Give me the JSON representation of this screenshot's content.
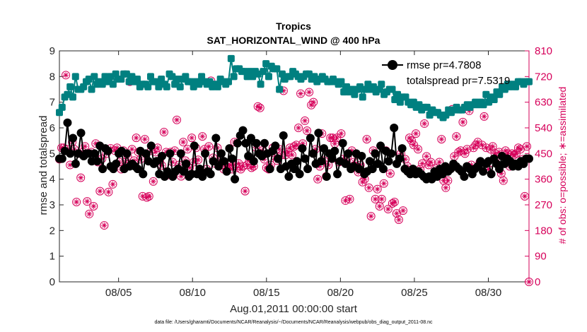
{
  "chart_data": {
    "type": "line",
    "title": "Tropics",
    "subtitle": "SAT_HORIZONTAL_WIND @ 400 hPa",
    "xlabel": "Aug.01,2011 00:00:00 start",
    "ylabel_left": "rmse and totalspread",
    "ylabel_right": "# of obs: o=possible; ∗=assimilated",
    "footer": "data file: /Users/gharamti/Documents/NCAR/Reanalysis/~/Documents/NCAR/Reanalysis/webpub/obs_diag_output_2011-08.nc",
    "x_unit": "days since Aug.01,2011 00:00",
    "xlim": [
      0.0,
      31.75
    ],
    "ylim_left": [
      0,
      9
    ],
    "ylim_right": [
      0,
      810
    ],
    "x_ticks": [
      {
        "day": 4,
        "label": "08/05"
      },
      {
        "day": 9,
        "label": "08/10"
      },
      {
        "day": 14,
        "label": "08/15"
      },
      {
        "day": 19,
        "label": "08/20"
      },
      {
        "day": 24,
        "label": "08/25"
      },
      {
        "day": 29,
        "label": "08/30"
      }
    ],
    "y_ticks_left": [
      0,
      1,
      2,
      3,
      4,
      5,
      6,
      7,
      8,
      9
    ],
    "y_ticks_right": [
      0,
      90,
      180,
      270,
      360,
      450,
      540,
      630,
      720,
      810
    ],
    "colors": {
      "rmse": "#000000",
      "totalspread": "#008080",
      "obs": "#d6005a",
      "axis_right": "#d6005a",
      "axes": "#262626"
    },
    "legend": {
      "placement": "top-right",
      "entries": [
        {
          "label": "rmse pr=4.7808",
          "series": "rmse"
        },
        {
          "label": "totalspread pr=7.5319",
          "series": "totalspread"
        }
      ]
    },
    "series": [
      {
        "name": "rmse",
        "axis": "left",
        "marker": "filled-circle",
        "values": [
          4.8,
          4.8,
          5.1,
          6.2,
          5.0,
          5.6,
          4.6,
          5.0,
          5.8,
          4.9,
          5.0,
          5.0,
          4.7,
          5.0,
          4.7,
          5.3,
          4.4,
          5.2,
          5.1,
          4.5,
          4.4,
          4.6,
          5.0,
          5.1,
          4.4,
          5.0,
          4.5,
          4.6,
          4.5,
          4.4,
          5.1,
          4.2,
          5.0,
          4.7,
          5.3,
          4.6,
          4.7,
          4.2,
          4.9,
          4.1,
          4.3,
          5.0,
          4.1,
          4.3,
          4.4,
          5.0,
          4.3,
          4.6,
          4.1,
          4.2,
          5.3,
          4.2,
          4.4,
          4.1,
          5.0,
          4.3,
          4.2,
          4.7,
          5.6,
          4.5,
          5.0,
          4.7,
          4.3,
          5.2,
          4.8,
          4.0,
          5.4,
          5.7,
          5.9,
          5.4,
          4.9,
          5.6,
          4.7,
          5.4,
          5.0,
          4.9,
          5.4,
          5.0,
          4.4,
          5.1,
          5.3,
          4.8,
          4.4,
          5.7,
          4.5,
          4.1,
          4.6,
          4.4,
          4.7,
          4.2,
          5.2,
          4.8,
          4.4,
          5.6,
          5.0,
          4.6,
          5.8,
          4.7,
          5.2,
          4.1,
          5.0,
          4.8,
          5.1,
          4.2,
          4.7,
          5.4,
          4.6,
          5.0,
          4.4,
          4.5,
          5.0,
          4.4,
          4.9,
          4.2,
          4.3,
          4.7,
          4.4,
          5.0,
          4.6,
          5.3,
          4.4,
          5.1,
          4.7,
          5.0,
          6.0,
          4.6,
          4.8,
          5.2,
          4.4,
          4.3,
          4.2,
          4.4,
          4.2,
          4.3,
          4.2,
          4.1,
          4.0,
          4.1,
          4.0,
          4.3,
          4.1,
          4.4,
          4.2,
          4.5,
          4.3,
          4.4,
          4.6,
          4.5,
          4.4,
          4.3,
          4.1,
          4.5,
          4.4,
          4.2,
          4.4,
          4.5,
          4.7,
          4.3,
          4.6,
          4.7,
          4.2,
          4.8,
          4.6,
          4.4,
          4.9,
          4.6,
          4.8,
          4.7,
          4.5,
          4.6,
          4.5,
          4.7,
          4.6,
          4.8,
          4.8
        ]
      },
      {
        "name": "totalspread",
        "axis": "left",
        "marker": "filled-square",
        "values": [
          6.6,
          6.8,
          7.2,
          7.3,
          7.6,
          7.2,
          8.0,
          7.5,
          7.5,
          7.6,
          7.8,
          7.9,
          7.5,
          8.0,
          7.7,
          7.8,
          7.7,
          8.0,
          7.8,
          8.0,
          7.7,
          8.1,
          7.9,
          7.9,
          8.1,
          8.1,
          7.8,
          8.0,
          7.8,
          7.9,
          7.6,
          7.7,
          7.7,
          7.6,
          8.0,
          7.8,
          7.8,
          7.6,
          7.9,
          7.7,
          7.6,
          8.1,
          8.0,
          7.7,
          7.9,
          7.6,
          7.9,
          8.0,
          7.8,
          7.8,
          7.6,
          7.8,
          7.7,
          8.0,
          7.8,
          7.7,
          7.8,
          7.6,
          7.7,
          7.6,
          7.9,
          7.8,
          7.7,
          7.8,
          8.7,
          8.0,
          8.3,
          8.3,
          8.2,
          8.2,
          8.0,
          8.2,
          8.0,
          8.2,
          8.1,
          7.7,
          8.2,
          8.5,
          8.0,
          8.4,
          8.3,
          8.3,
          7.5,
          8.1,
          7.9,
          8.0,
          8.0,
          8.2,
          8.1,
          8.0,
          7.9,
          8.0,
          8.1,
          8.1,
          7.9,
          8.0,
          7.8,
          7.9,
          8.0,
          7.9,
          7.8,
          7.8,
          7.9,
          7.8,
          7.7,
          7.8,
          7.4,
          7.6,
          7.4,
          7.5,
          7.3,
          7.5,
          7.6,
          7.2,
          7.5,
          7.7,
          7.5,
          7.6,
          7.4,
          7.5,
          7.7,
          7.3,
          7.4,
          7.5,
          7.5,
          7.1,
          7.3,
          7.0,
          7.2,
          7.2,
          7.0,
          6.9,
          7.0,
          6.8,
          6.9,
          6.7,
          6.8,
          6.8,
          6.5,
          6.7,
          6.6,
          6.6,
          6.5,
          6.4,
          6.5,
          6.7,
          6.6,
          6.7,
          6.8,
          6.7,
          6.7,
          6.8,
          6.9,
          6.8,
          6.9,
          7.0,
          6.9,
          7.0,
          6.9,
          7.3,
          7.0,
          7.2,
          7.1,
          7.4,
          7.3,
          7.6,
          7.5,
          7.7,
          7.6,
          7.7,
          7.6,
          7.8,
          7.8,
          7.7,
          7.8,
          7.8
        ]
      },
      {
        "name": "obs possible / assimilated",
        "axis": "right",
        "marker": "circle-with-asterisk",
        "values": [
          430,
          470,
          470,
          725,
          465,
          410,
          490,
          465,
          280,
          450,
          365,
          455,
          475,
          282,
          238,
          455,
          265,
          485,
          420,
          318,
          432,
          198,
          450,
          315,
          468,
          342,
          460,
          470,
          420,
          395,
          460,
          420,
          440,
          702,
          465,
          425,
          505,
          455,
          430,
          300,
          500,
          296,
          300,
          460,
          352,
          455,
          470,
          425,
          408,
          525,
          455,
          375,
          455,
          420,
          460,
          568,
          410,
          370,
          490,
          425,
          465,
          400,
          505,
          420,
          470,
          428,
          390,
          510,
          465,
          395,
          475,
          705,
          435,
          415,
          470,
          415,
          425,
          395,
          405,
          410,
          410,
          395,
          490,
          400,
          415,
          395,
          405,
          318,
          410,
          425,
          400,
          405,
          472,
          615,
          610,
          460,
          430,
          400,
          395,
          410,
          470,
          440,
          425,
          465,
          445,
          670,
          445,
          455,
          470,
          445,
          475,
          480,
          540,
          660,
          485,
          565,
          530,
          665,
          620,
          630,
          465,
          360,
          405,
          520,
          425,
          370,
          410,
          505,
          505,
          485,
          505,
          420,
          520,
          430,
          285,
          440,
          290,
          460,
          420,
          405,
          385,
          410,
          350,
          360,
          500,
          330,
          230,
          460,
          290,
          325,
          265,
          290,
          345,
          460,
          255,
          380,
          275,
          280,
          240,
          218,
          450,
          250,
          430,
          405,
          505,
          495,
          480,
          520,
          465,
          395,
          415,
          555,
          440,
          410,
          420,
          370,
          370,
          400,
          420,
          500,
          355,
          330,
          355,
          400,
          605,
          440,
          510,
          455,
          460,
          560,
          450,
          465,
          600,
          410,
          470,
          480,
          490,
          420,
          480,
          580,
          470,
          395,
          465,
          475,
          450,
          440,
          455,
          380,
          355,
          460,
          450,
          405,
          450,
          445,
          450,
          470,
          465,
          430,
          300,
          475,
          0
        ]
      }
    ]
  }
}
